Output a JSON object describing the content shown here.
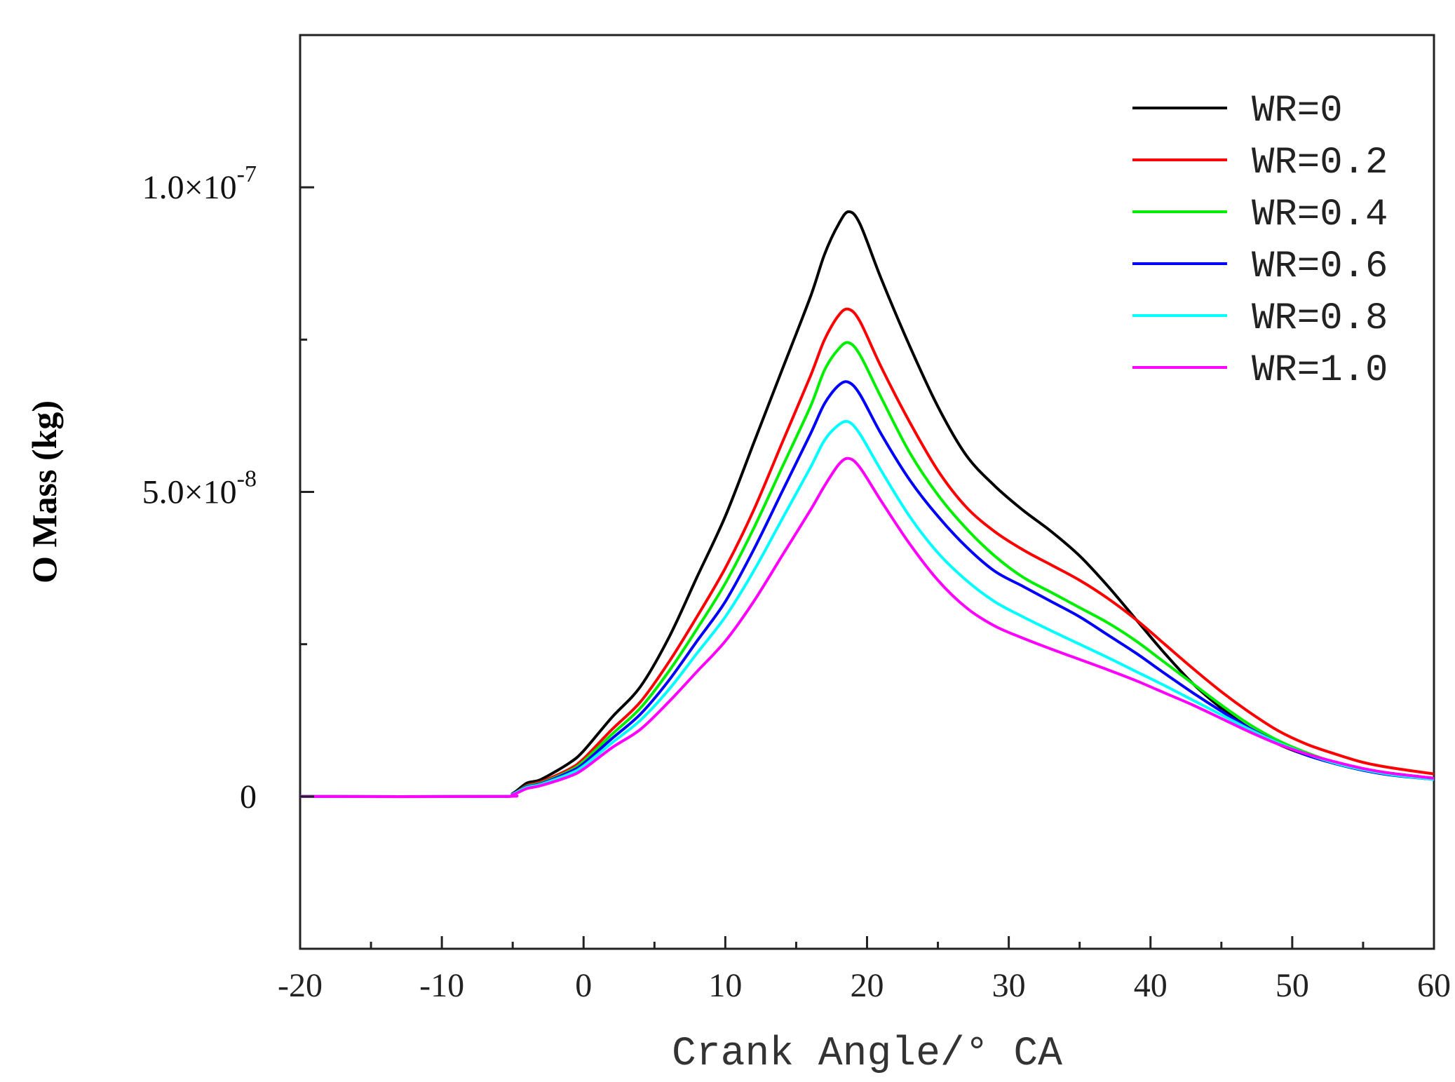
{
  "chart_data": {
    "type": "line",
    "title": "",
    "xlabel": "Crank Angle/° CA",
    "ylabel": "O Mass (kg)",
    "xlim": [
      -20,
      60
    ],
    "ylim": [
      -2.5e-08,
      1.25e-07
    ],
    "xticks": [
      -20,
      -10,
      0,
      10,
      20,
      30,
      40,
      50,
      60
    ],
    "xtick_labels": [
      "-20",
      "-10",
      "0",
      "10",
      "20",
      "30",
      "40",
      "50",
      "60"
    ],
    "yticks": [
      {
        "value": 0,
        "base": "0",
        "exp": ""
      },
      {
        "value": 5e-08,
        "base": "5.0×10",
        "exp": "-8"
      },
      {
        "value": 1e-07,
        "base": "1.0×10",
        "exp": "-7"
      }
    ],
    "legend_position": "top-right",
    "series": [
      {
        "name": "WR=0",
        "color": "#000000",
        "x": [
          -20,
          -6,
          -5,
          -4,
          -3,
          -1,
          0,
          2,
          4,
          6,
          8,
          10,
          12,
          14,
          16,
          17,
          18,
          18.7,
          19.5,
          21,
          23,
          25,
          27,
          29,
          31,
          33,
          35,
          37,
          39,
          41,
          43,
          45,
          47,
          49,
          51,
          53,
          55,
          57,
          60
        ],
        "y": [
          0,
          0,
          5e-10,
          2.2e-09,
          2.8e-09,
          5.5e-09,
          7.5e-09,
          1.3e-08,
          1.8e-08,
          2.6e-08,
          3.6e-08,
          4.6e-08,
          5.8e-08,
          7e-08,
          8.2e-08,
          8.9e-08,
          9.4e-08,
          9.6e-08,
          9.4e-08,
          8.5e-08,
          7.4e-08,
          6.4e-08,
          5.6e-08,
          5.1e-08,
          4.7e-08,
          4.35e-08,
          3.95e-08,
          3.45e-08,
          2.9e-08,
          2.35e-08,
          1.85e-08,
          1.45e-08,
          1.12e-08,
          8.6e-09,
          6.8e-09,
          5.5e-09,
          4.5e-09,
          3.8e-09,
          3e-09
        ]
      },
      {
        "name": "WR=0.2",
        "color": "#ff0000",
        "x": [
          -20,
          -6,
          -5,
          -4,
          -3,
          -1,
          0,
          2,
          4,
          6,
          8,
          10,
          12,
          14,
          16,
          17,
          18,
          18.7,
          19.5,
          21,
          23,
          25,
          27,
          29,
          31,
          33,
          35,
          37,
          39,
          41,
          43,
          45,
          47,
          49,
          51,
          53,
          55,
          57,
          60
        ],
        "y": [
          0,
          0,
          4e-10,
          1.8e-09,
          2.4e-09,
          4.5e-09,
          6.2e-09,
          1.1e-08,
          1.55e-08,
          2.2e-08,
          2.95e-08,
          3.75e-08,
          4.7e-08,
          5.8e-08,
          6.9e-08,
          7.5e-08,
          7.9e-08,
          8e-08,
          7.8e-08,
          7.05e-08,
          6.15e-08,
          5.35e-08,
          4.75e-08,
          4.35e-08,
          4.05e-08,
          3.8e-08,
          3.55e-08,
          3.25e-08,
          2.9e-08,
          2.5e-08,
          2.1e-08,
          1.72e-08,
          1.38e-08,
          1.08e-08,
          8.6e-09,
          7e-09,
          5.6e-09,
          4.7e-09,
          3.7e-09
        ]
      },
      {
        "name": "WR=0.4",
        "color": "#00ee00",
        "x": [
          -20,
          -6,
          -5,
          -4,
          -3,
          -1,
          0,
          2,
          4,
          6,
          8,
          10,
          12,
          14,
          16,
          17,
          18,
          18.7,
          19.5,
          21,
          23,
          25,
          27,
          29,
          31,
          33,
          35,
          37,
          39,
          41,
          43,
          45,
          47,
          49,
          51,
          53,
          55,
          57,
          60
        ],
        "y": [
          0,
          0,
          4e-10,
          1.7e-09,
          2.2e-09,
          4.2e-09,
          5.8e-09,
          1.02e-08,
          1.45e-08,
          2.05e-08,
          2.75e-08,
          3.5e-08,
          4.4e-08,
          5.4e-08,
          6.4e-08,
          7e-08,
          7.35e-08,
          7.45e-08,
          7.25e-08,
          6.55e-08,
          5.65e-08,
          4.95e-08,
          4.4e-08,
          3.95e-08,
          3.6e-08,
          3.35e-08,
          3.1e-08,
          2.85e-08,
          2.55e-08,
          2.2e-08,
          1.85e-08,
          1.5e-08,
          1.18e-08,
          9.2e-09,
          7.2e-09,
          5.6e-09,
          4.5e-09,
          3.7e-09,
          2.9e-09
        ]
      },
      {
        "name": "WR=0.6",
        "color": "#0000ff",
        "x": [
          -20,
          -6,
          -5,
          -4,
          -3,
          -1,
          0,
          2,
          4,
          6,
          8,
          10,
          12,
          14,
          16,
          17,
          18,
          18.7,
          19.5,
          21,
          23,
          25,
          27,
          29,
          31,
          33,
          35,
          37,
          39,
          41,
          43,
          45,
          47,
          49,
          51,
          53,
          55,
          57,
          60
        ],
        "y": [
          0,
          0,
          4e-10,
          1.6e-09,
          2.1e-09,
          4e-09,
          5.4e-09,
          9.5e-09,
          1.35e-08,
          1.9e-08,
          2.55e-08,
          3.2e-08,
          4.05e-08,
          5e-08,
          5.95e-08,
          6.45e-08,
          6.75e-08,
          6.8e-08,
          6.6e-08,
          5.95e-08,
          5.2e-08,
          4.6e-08,
          4.1e-08,
          3.7e-08,
          3.45e-08,
          3.2e-08,
          2.95e-08,
          2.65e-08,
          2.35e-08,
          2.02e-08,
          1.7e-08,
          1.4e-08,
          1.12e-08,
          8.8e-09,
          6.8e-09,
          5.4e-09,
          4.3e-09,
          3.5e-09,
          2.8e-09
        ]
      },
      {
        "name": "WR=0.8",
        "color": "#00ffff",
        "x": [
          -20,
          -6,
          -5,
          -4,
          -3,
          -1,
          0,
          2,
          4,
          6,
          8,
          10,
          12,
          14,
          16,
          17,
          18,
          18.7,
          19.5,
          21,
          23,
          25,
          27,
          29,
          31,
          33,
          35,
          37,
          39,
          41,
          43,
          45,
          47,
          49,
          51,
          53,
          55,
          57,
          60
        ],
        "y": [
          0,
          0,
          4e-10,
          1.5e-09,
          2e-09,
          3.7e-09,
          5e-09,
          8.8e-09,
          1.25e-08,
          1.75e-08,
          2.35e-08,
          2.95e-08,
          3.7e-08,
          4.55e-08,
          5.4e-08,
          5.85e-08,
          6.1e-08,
          6.15e-08,
          5.95e-08,
          5.35e-08,
          4.6e-08,
          4e-08,
          3.55e-08,
          3.2e-08,
          2.95e-08,
          2.72e-08,
          2.5e-08,
          2.28e-08,
          2.05e-08,
          1.82e-08,
          1.58e-08,
          1.34e-08,
          1.1e-08,
          8.8e-09,
          7e-09,
          5.5e-09,
          4.4e-09,
          3.6e-09,
          2.8e-09
        ]
      },
      {
        "name": "WR=1.0",
        "color": "#ff00ff",
        "x": [
          -20,
          -6,
          -5,
          -4,
          -3,
          -1,
          0,
          2,
          4,
          6,
          8,
          10,
          12,
          14,
          16,
          17,
          18,
          18.7,
          19.5,
          21,
          23,
          25,
          27,
          29,
          31,
          33,
          35,
          37,
          39,
          41,
          43,
          45,
          47,
          49,
          51,
          53,
          55,
          57,
          60
        ],
        "y": [
          0,
          0,
          3e-10,
          1.3e-09,
          1.8e-09,
          3.3e-09,
          4.5e-09,
          8e-09,
          1.1e-08,
          1.55e-08,
          2.05e-08,
          2.55e-08,
          3.2e-08,
          3.95e-08,
          4.7e-08,
          5.1e-08,
          5.45e-08,
          5.55e-08,
          5.4e-08,
          4.85e-08,
          4.15e-08,
          3.55e-08,
          3.1e-08,
          2.8e-08,
          2.6e-08,
          2.42e-08,
          2.25e-08,
          2.08e-08,
          1.9e-08,
          1.7e-08,
          1.5e-08,
          1.28e-08,
          1.06e-08,
          8.6e-09,
          7e-09,
          5.7e-09,
          4.6e-09,
          3.8e-09,
          3e-09
        ]
      }
    ]
  }
}
